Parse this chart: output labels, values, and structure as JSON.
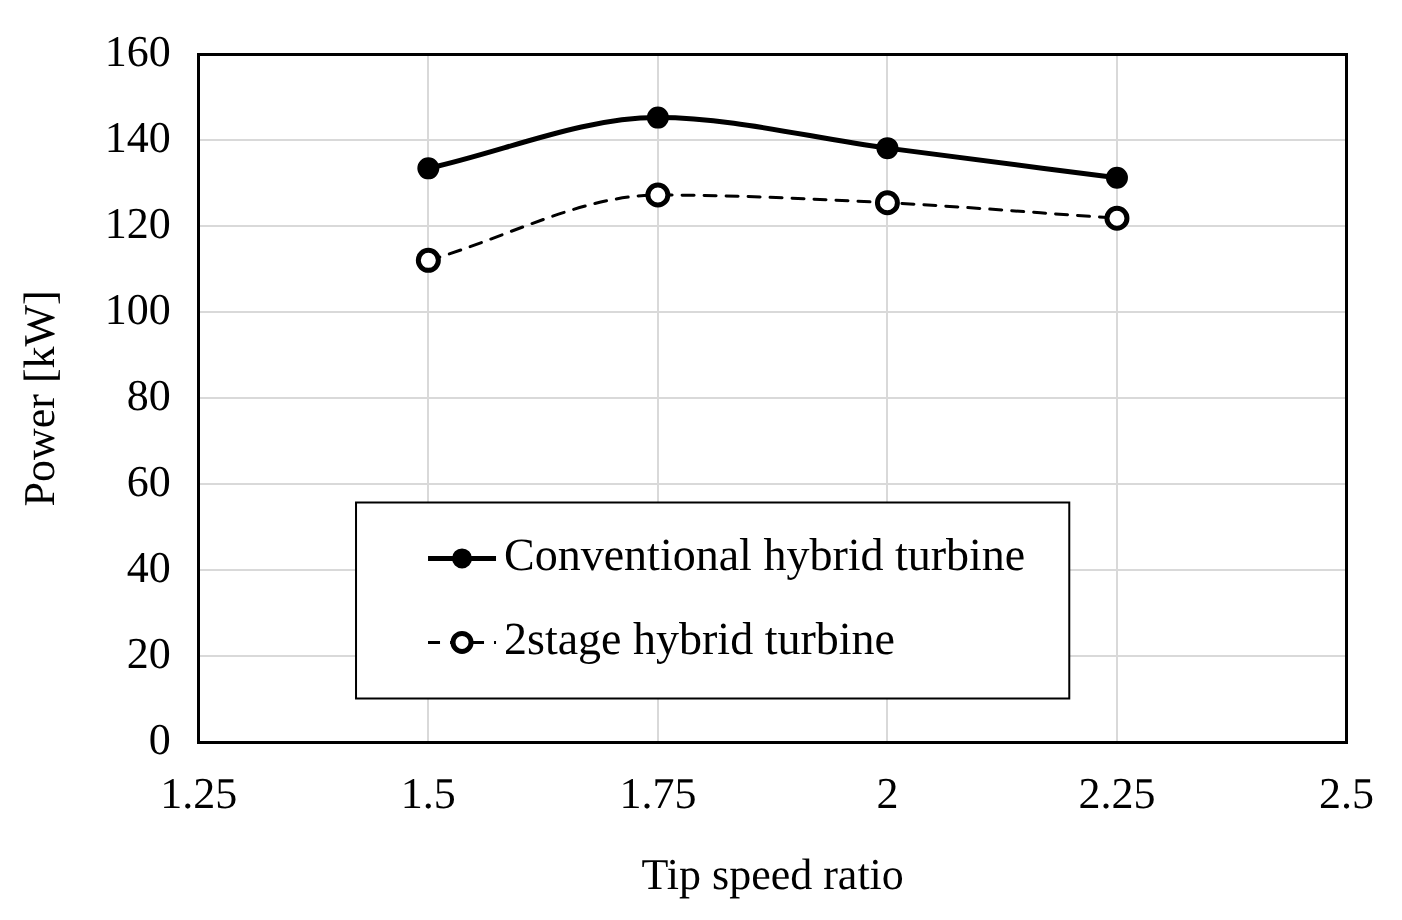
{
  "chart_data": {
    "type": "line",
    "xlabel": "Tip speed ratio",
    "ylabel": "Power [kW]",
    "x": [
      1.5,
      1.75,
      2,
      2.25
    ],
    "series": [
      {
        "name": "Conventional hybrid turbine",
        "color": "#000000",
        "values": [
          133.5,
          145.3,
          138.2,
          131.3
        ],
        "marker": "circle",
        "line_style": "solid"
      },
      {
        "name": "2stage hybrid turbine",
        "color": "#000000",
        "values": [
          112.1,
          127.3,
          125.5,
          121.9
        ],
        "marker": "circle",
        "line_style": "dashed"
      }
    ],
    "xlim": [
      1.25,
      2.5
    ],
    "xticks": [
      1.25,
      1.5,
      1.75,
      2,
      2.25,
      2.5
    ],
    "ylim": [
      0,
      160
    ],
    "yticks": [
      0,
      20,
      40,
      60,
      80,
      100,
      120,
      140,
      160
    ],
    "grid": true,
    "legend": "bottom"
  }
}
